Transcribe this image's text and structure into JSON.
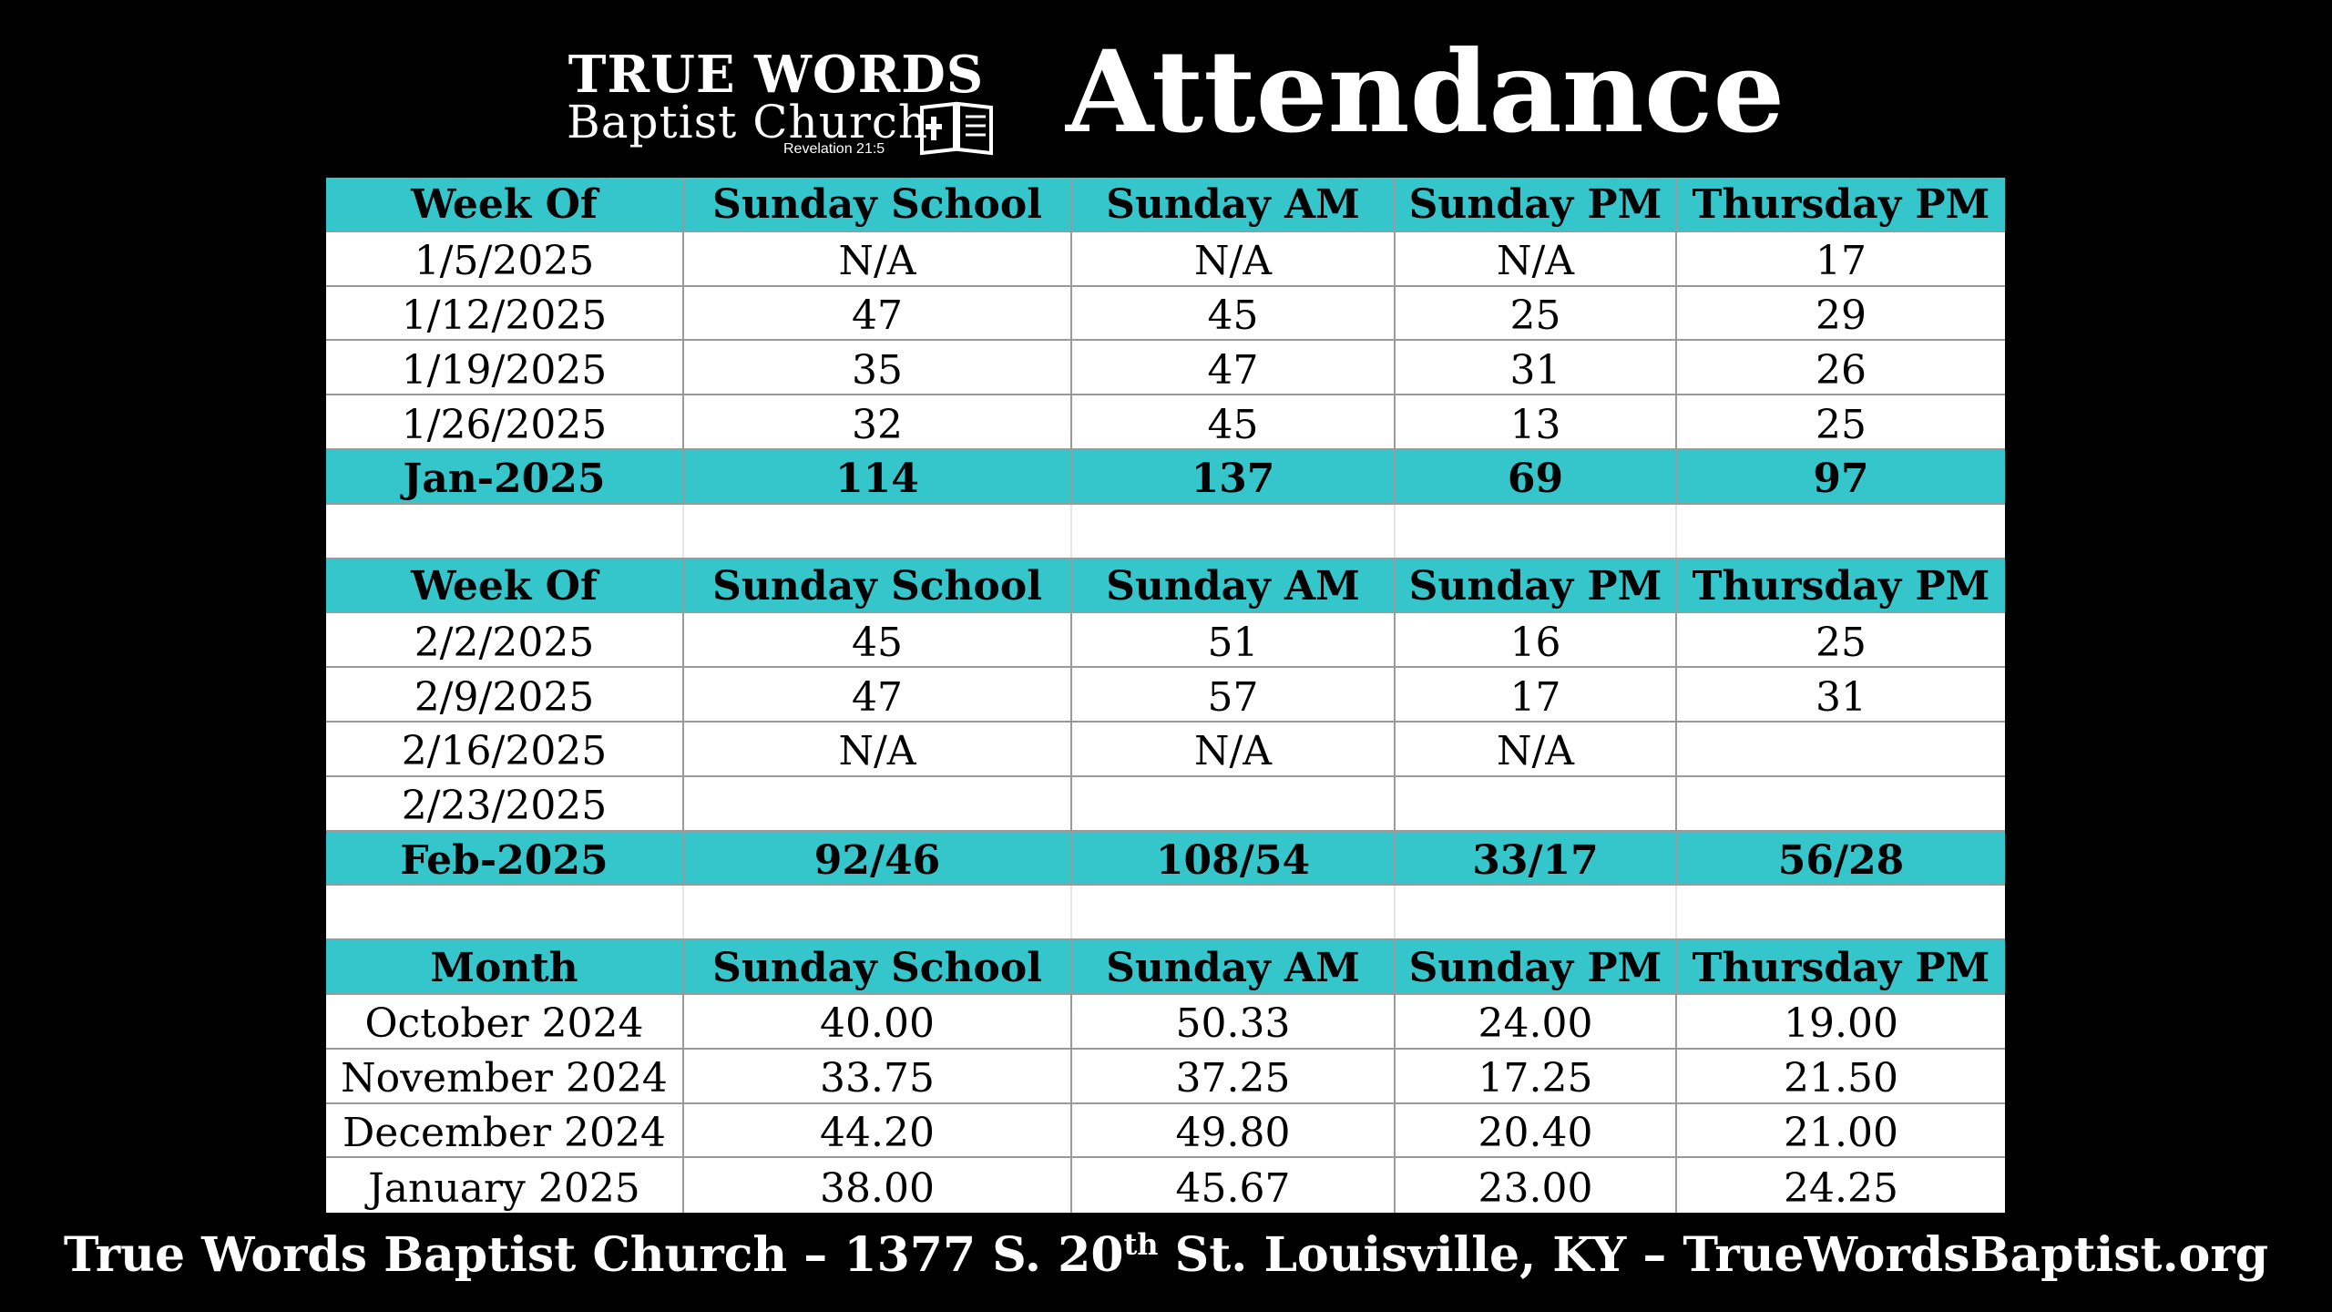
{
  "header": {
    "logo_line1": "TRUE WORDS",
    "logo_line2": "Baptist Church",
    "logo_line3": "Revelation 21:5",
    "title": "Attendance"
  },
  "colors": {
    "header_fill": "#35c6cc",
    "background": "#000000"
  },
  "sections": [
    {
      "columns": [
        "Week Of",
        "Sunday School",
        "Sunday AM",
        "Sunday PM",
        "Thursday PM"
      ],
      "rows": [
        [
          "1/5/2025",
          "N/A",
          "N/A",
          "N/A",
          "17"
        ],
        [
          "1/12/2025",
          "47",
          "45",
          "25",
          "29"
        ],
        [
          "1/19/2025",
          "35",
          "47",
          "31",
          "26"
        ],
        [
          "1/26/2025",
          "32",
          "45",
          "13",
          "25"
        ]
      ],
      "total": [
        "Jan-2025",
        "114",
        "137",
        "69",
        "97"
      ]
    },
    {
      "columns": [
        "Week Of",
        "Sunday School",
        "Sunday AM",
        "Sunday PM",
        "Thursday PM"
      ],
      "rows": [
        [
          "2/2/2025",
          "45",
          "51",
          "16",
          "25"
        ],
        [
          "2/9/2025",
          "47",
          "57",
          "17",
          "31"
        ],
        [
          "2/16/2025",
          "N/A",
          "N/A",
          "N/A",
          ""
        ],
        [
          "2/23/2025",
          "",
          "",
          "",
          ""
        ]
      ],
      "total": [
        "Feb-2025",
        "92/46",
        "108/54",
        "33/17",
        "56/28"
      ]
    },
    {
      "columns": [
        "Month",
        "Sunday School",
        "Sunday AM",
        "Sunday PM",
        "Thursday PM"
      ],
      "rows": [
        [
          "October 2024",
          "40.00",
          "50.33",
          "24.00",
          "19.00"
        ],
        [
          "November 2024",
          "33.75",
          "37.25",
          "17.25",
          "21.50"
        ],
        [
          "December 2024",
          "44.20",
          "49.80",
          "20.40",
          "21.00"
        ],
        [
          "January 2025",
          "38.00",
          "45.67",
          "23.00",
          "24.25"
        ]
      ]
    }
  ],
  "footer": {
    "prefix": "True Words Baptist Church – 1377 S. 20",
    "sup": "th",
    "suffix": " St. Louisville, KY – TrueWordsBaptist.org"
  }
}
